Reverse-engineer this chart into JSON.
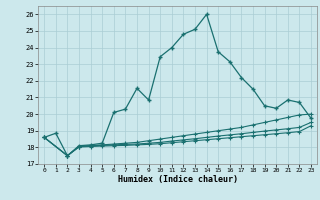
{
  "xlabel": "Humidex (Indice chaleur)",
  "background_color": "#cce8ec",
  "grid_color": "#aacdd4",
  "line_color": "#1a7070",
  "xlim": [
    -0.5,
    23.5
  ],
  "ylim": [
    17,
    26.5
  ],
  "xticks": [
    0,
    1,
    2,
    3,
    4,
    5,
    6,
    7,
    8,
    9,
    10,
    11,
    12,
    13,
    14,
    15,
    16,
    17,
    18,
    19,
    20,
    21,
    22,
    23
  ],
  "yticks": [
    17,
    18,
    19,
    20,
    21,
    22,
    23,
    24,
    25,
    26
  ],
  "series1_x": [
    0,
    1,
    2,
    3,
    4,
    5,
    6,
    7,
    8,
    9,
    10,
    11,
    12,
    13,
    14,
    15,
    16,
    17,
    18,
    19,
    20,
    21,
    22,
    23
  ],
  "series1_y": [
    18.6,
    18.85,
    17.5,
    18.1,
    18.15,
    18.25,
    20.1,
    20.3,
    21.55,
    20.85,
    23.45,
    24.0,
    24.8,
    25.1,
    26.0,
    23.75,
    23.15,
    22.2,
    21.5,
    20.5,
    20.35,
    20.85,
    20.7,
    19.75
  ],
  "series2_x": [
    0,
    2,
    3,
    4,
    5,
    6,
    7,
    8,
    9,
    10,
    11,
    12,
    13,
    14,
    15,
    16,
    17,
    18,
    19,
    20,
    21,
    22,
    23
  ],
  "series2_y": [
    18.6,
    17.5,
    18.05,
    18.1,
    18.15,
    18.2,
    18.25,
    18.3,
    18.4,
    18.5,
    18.6,
    18.7,
    18.8,
    18.9,
    19.0,
    19.1,
    19.2,
    19.35,
    19.5,
    19.65,
    19.8,
    19.95,
    20.0
  ],
  "series3_x": [
    0,
    2,
    3,
    4,
    5,
    6,
    7,
    8,
    9,
    10,
    11,
    12,
    13,
    14,
    15,
    16,
    17,
    18,
    19,
    20,
    21,
    22,
    23
  ],
  "series3_y": [
    18.6,
    17.5,
    18.05,
    18.1,
    18.12,
    18.15,
    18.18,
    18.2,
    18.25,
    18.3,
    18.38,
    18.45,
    18.52,
    18.6,
    18.68,
    18.75,
    18.82,
    18.9,
    18.98,
    19.05,
    19.12,
    19.2,
    19.5
  ],
  "series4_x": [
    0,
    2,
    3,
    4,
    5,
    6,
    7,
    8,
    9,
    10,
    11,
    12,
    13,
    14,
    15,
    16,
    17,
    18,
    19,
    20,
    21,
    22,
    23
  ],
  "series4_y": [
    18.6,
    17.5,
    18.02,
    18.05,
    18.08,
    18.1,
    18.12,
    18.15,
    18.18,
    18.22,
    18.28,
    18.34,
    18.4,
    18.46,
    18.52,
    18.58,
    18.64,
    18.7,
    18.76,
    18.82,
    18.88,
    18.95,
    19.3
  ]
}
